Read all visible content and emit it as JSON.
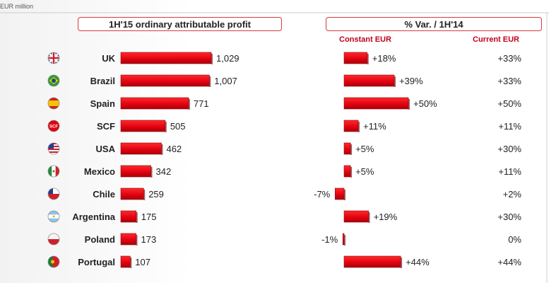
{
  "unit_label": "EUR million",
  "left_header": "1H'15 ordinary attributable profit",
  "right_header": "% Var. / 1H'14",
  "col_constant": "Constant EUR",
  "col_current": "Current EUR",
  "colors": {
    "bar": "#e00010",
    "bar_dark": "#a8000a",
    "accent": "#c0001a",
    "border": "#d83a3a"
  },
  "chart_data": {
    "type": "bar",
    "orientation": "horizontal",
    "categories": [
      "UK",
      "Brazil",
      "Spain",
      "SCF",
      "USA",
      "Mexico",
      "Chile",
      "Argentina",
      "Poland",
      "Portugal"
    ],
    "flag_icons": [
      "uk-flag-icon",
      "brazil-flag-icon",
      "spain-flag-icon",
      "scf-logo-icon",
      "usa-flag-icon",
      "mexico-flag-icon",
      "chile-flag-icon",
      "argentina-flag-icon",
      "poland-flag-icon",
      "portugal-flag-icon"
    ],
    "series": [
      {
        "name": "1H'15 ordinary attributable profit",
        "values": [
          1029,
          1007,
          771,
          505,
          462,
          342,
          259,
          175,
          173,
          107
        ],
        "labels": [
          "1,029",
          "1,007",
          "771",
          "505",
          "462",
          "342",
          "259",
          "175",
          "173",
          "107"
        ]
      },
      {
        "name": "Constant EUR",
        "values": [
          18,
          39,
          50,
          11,
          5,
          5,
          -7,
          19,
          -1,
          44
        ],
        "labels": [
          "+18%",
          "+39%",
          "+50%",
          "+11%",
          "+5%",
          "+5%",
          "-7%",
          "+19%",
          "-1%",
          "+44%"
        ]
      },
      {
        "name": "Current EUR",
        "values": [
          33,
          33,
          50,
          11,
          30,
          11,
          2,
          30,
          0,
          44
        ],
        "labels": [
          "+33%",
          "+33%",
          "+50%",
          "+11%",
          "+30%",
          "+11%",
          "+2%",
          "+30%",
          "0%",
          "+44%"
        ]
      }
    ]
  }
}
